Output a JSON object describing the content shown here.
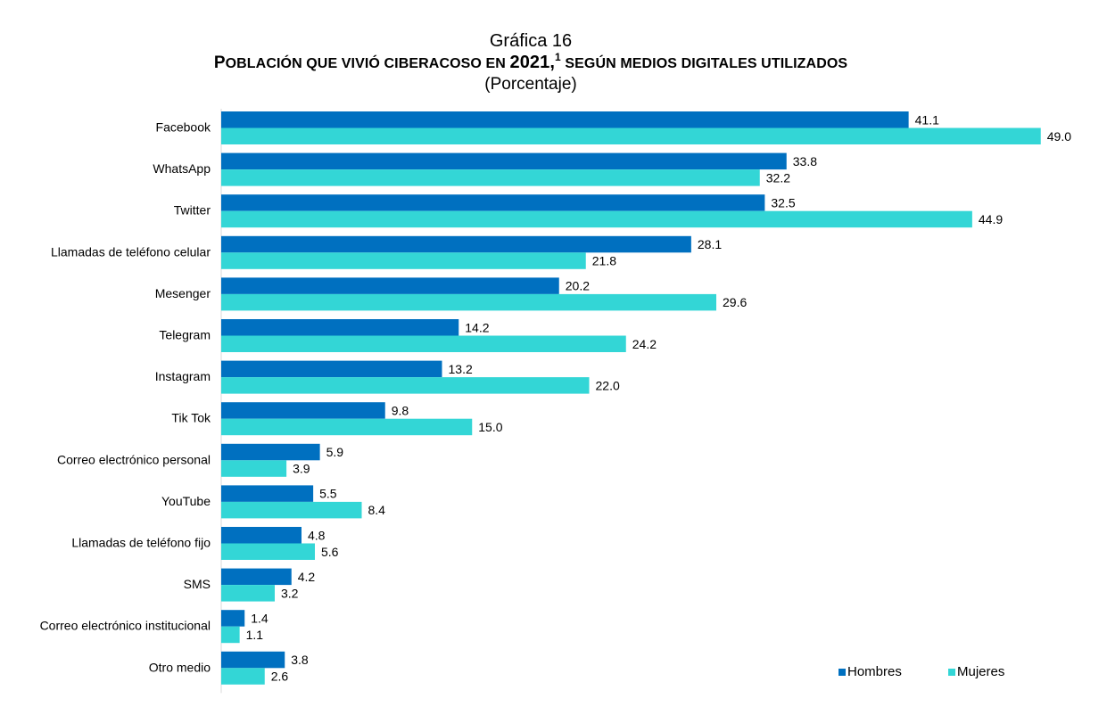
{
  "title_line1": "Gráfica 16",
  "title_main": {
    "part1_cap": "P",
    "part1_small": "OBLACIÓN QUE VIVIÓ CIBERACOSO EN ",
    "year": "2021,",
    "footnote_mark": "1",
    "part2_small": " SEGÚN MEDIOS DIGITALES UTILIZADOS"
  },
  "subtitle": "(Porcentaje)",
  "chart_data": {
    "type": "bar",
    "orientation": "horizontal",
    "categories": [
      "Facebook",
      "WhatsApp",
      "Twitter",
      "Llamadas de teléfono celular",
      "Mesenger",
      "Telegram",
      "Instagram",
      "Tik Tok",
      "Correo electrónico personal",
      "YouTube",
      "Llamadas de teléfono fijo",
      "SMS",
      "Correo electrónico institucional",
      "Otro medio"
    ],
    "series": [
      {
        "name": "Hombres",
        "color": "#0070C0",
        "values": [
          41.1,
          33.8,
          32.5,
          28.1,
          20.2,
          14.2,
          13.2,
          9.8,
          5.9,
          5.5,
          4.8,
          4.2,
          1.4,
          3.8
        ],
        "labels": [
          "41.1",
          "33.8",
          "32.5",
          "28.1",
          "20.2",
          "14.2",
          "13.2",
          "9.8",
          "5.9",
          "5.5",
          "4.8",
          "4.2",
          "1.4",
          "3.8"
        ]
      },
      {
        "name": "Mujeres",
        "color": "#33D6D6",
        "values": [
          49.0,
          32.2,
          44.9,
          21.8,
          29.6,
          24.2,
          22.0,
          15.0,
          3.9,
          8.4,
          5.6,
          3.2,
          1.1,
          2.6
        ],
        "labels": [
          "49.0",
          "32.2",
          "44.9",
          "21.8",
          "29.6",
          "24.2",
          "22.0",
          "15.0",
          "3.9",
          "8.4",
          "5.6",
          "3.2",
          "1.1",
          "2.6"
        ]
      }
    ],
    "xlim": [
      0,
      50
    ],
    "grid": false,
    "legend_position": "bottom-right"
  }
}
